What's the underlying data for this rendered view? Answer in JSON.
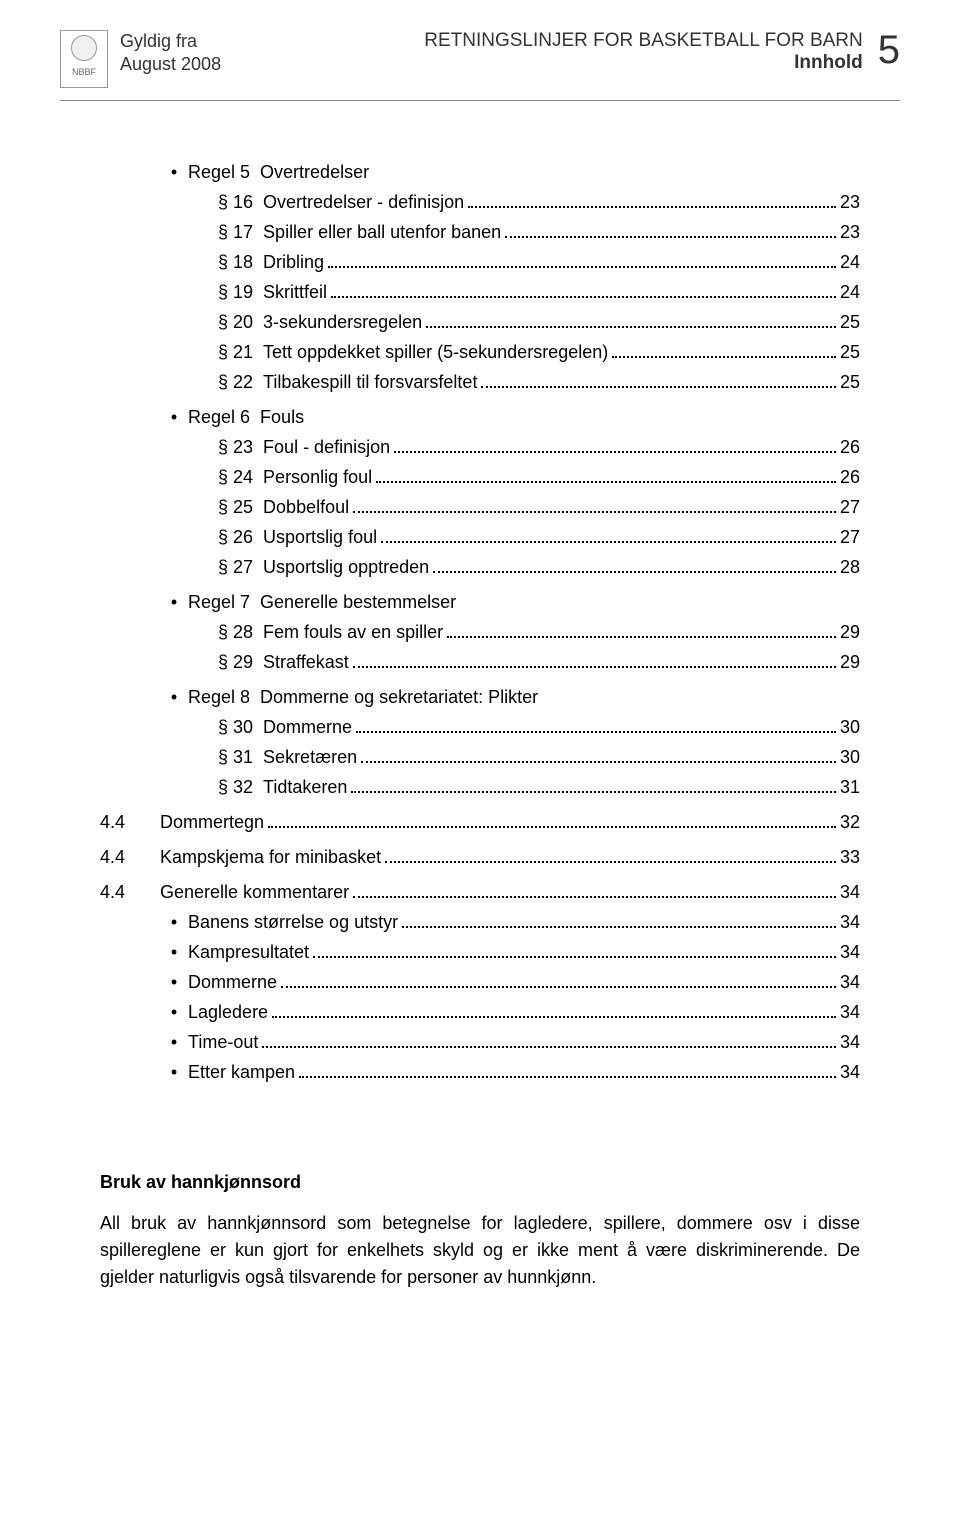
{
  "header": {
    "valid_from_label": "Gyldig fra",
    "valid_from_date": "August 2008",
    "title": "RETNINGSLINJER FOR BASKETBALL FOR BARN",
    "subtitle": "Innhold",
    "page_number": "5",
    "logo_text": "NBBF"
  },
  "toc": {
    "rules": [
      {
        "rule_label": "Regel 5",
        "rule_title": "Overtredelser",
        "items": [
          {
            "para": "§ 16",
            "label": "Overtredelser - definisjon",
            "page": "23"
          },
          {
            "para": "§ 17",
            "label": "Spiller eller ball utenfor banen",
            "page": "23"
          },
          {
            "para": "§ 18",
            "label": "Dribling",
            "page": "24"
          },
          {
            "para": "§ 19",
            "label": "Skrittfeil",
            "page": "24"
          },
          {
            "para": "§ 20",
            "label": "3-sekundersregelen",
            "page": "25"
          },
          {
            "para": "§ 21",
            "label": "Tett oppdekket spiller (5-sekundersregelen)",
            "page": "25"
          },
          {
            "para": "§ 22",
            "label": "Tilbakespill til forsvarsfeltet",
            "page": "25"
          }
        ]
      },
      {
        "rule_label": "Regel 6",
        "rule_title": "Fouls",
        "items": [
          {
            "para": "§ 23",
            "label": "Foul - definisjon",
            "page": "26"
          },
          {
            "para": "§ 24",
            "label": "Personlig foul",
            "page": "26"
          },
          {
            "para": "§ 25",
            "label": "Dobbelfoul",
            "page": "27"
          },
          {
            "para": "§ 26",
            "label": "Usportslig foul",
            "page": "27"
          },
          {
            "para": "§ 27",
            "label": "Usportslig opptreden",
            "page": "28"
          }
        ]
      },
      {
        "rule_label": "Regel 7",
        "rule_title": "Generelle bestemmelser",
        "items": [
          {
            "para": "§ 28",
            "label": "Fem fouls av en spiller",
            "page": "29"
          },
          {
            "para": "§ 29",
            "label": "Straffekast",
            "page": "29"
          }
        ]
      },
      {
        "rule_label": "Regel 8",
        "rule_title": "Dommerne og sekretariatet: Plikter",
        "items": [
          {
            "para": "§ 30",
            "label": "Dommerne",
            "page": "30"
          },
          {
            "para": "§ 31",
            "label": "Sekretæren",
            "page": "30"
          },
          {
            "para": "§ 32",
            "label": "Tidtakeren",
            "page": "31"
          }
        ]
      }
    ],
    "sections": [
      {
        "num": "4.4",
        "label": "Dommertegn",
        "page": "32"
      },
      {
        "num": "4.4",
        "label": "Kampskjema for minibasket",
        "page": "33"
      },
      {
        "num": "4.4",
        "label": "Generelle kommentarer",
        "page": "34",
        "subitems": [
          {
            "label": "Banens størrelse og utstyr",
            "page": "34"
          },
          {
            "label": "Kampresultatet",
            "page": "34"
          },
          {
            "label": "Dommerne",
            "page": "34"
          },
          {
            "label": "Lagledere",
            "page": "34"
          },
          {
            "label": "Time-out",
            "page": "34"
          },
          {
            "label": "Etter kampen",
            "page": "34"
          }
        ]
      }
    ]
  },
  "footer": {
    "heading": "Bruk av hannkjønnsord",
    "text": "All bruk av hannkjønnsord som betegnelse for lagledere, spillere, dommere osv i disse spillereglene er kun gjort for enkelhets skyld og er ikke ment å være diskriminerende. De gjelder naturligvis også tilsvarende for personer av hunnkjønn."
  },
  "colors": {
    "text": "#000000",
    "header_text": "#333333",
    "border": "#888888",
    "background": "#ffffff"
  },
  "typography": {
    "body_fontsize": 18,
    "page_number_fontsize": 40,
    "font_family": "Arial"
  }
}
